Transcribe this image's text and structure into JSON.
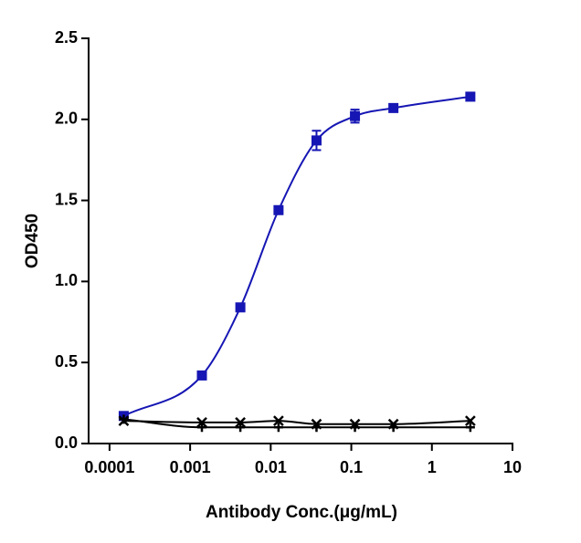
{
  "chart_data": {
    "type": "scatter",
    "x_label": "Antibody Conc.(μg/mL)",
    "y_label": "OD450",
    "x_log": true,
    "xlim": [
      5.5e-05,
      10
    ],
    "xticks": [
      0.0001,
      0.001,
      0.01,
      0.1,
      1,
      10
    ],
    "ylim": [
      0,
      2.5
    ],
    "yticks": [
      {
        "value": 0,
        "label": "0.0"
      },
      0.5,
      {
        "value": 1,
        "label": "1.0"
      },
      1.5,
      {
        "value": 2,
        "label": "2.0"
      },
      2.5
    ],
    "series": [
      {
        "color": "#1616b4",
        "marker": "square",
        "x": [
          0.00015,
          0.0014,
          0.0042,
          0.0125,
          0.037,
          0.111,
          0.333,
          3
        ],
        "values": [
          0.17,
          0.42,
          0.84,
          1.44,
          1.87,
          2.02,
          2.07,
          2.14
        ],
        "errors": [
          null,
          null,
          null,
          null,
          0.06,
          0.04,
          null,
          null
        ]
      },
      {
        "color": "#000000",
        "marker": "x",
        "x": [
          0.00015,
          0.0014,
          0.0042,
          0.0125,
          0.037,
          0.111,
          0.333,
          3
        ],
        "values": [
          0.14,
          0.13,
          0.13,
          0.14,
          0.12,
          0.12,
          0.12,
          0.14
        ]
      },
      {
        "color": "#000000",
        "marker": "plus",
        "x": [
          0.00015,
          0.0014,
          0.0042,
          0.0125,
          0.037,
          0.111,
          0.333,
          3
        ],
        "values": [
          0.15,
          0.1,
          0.1,
          0.1,
          0.1,
          0.1,
          0.1,
          0.1
        ]
      }
    ]
  }
}
